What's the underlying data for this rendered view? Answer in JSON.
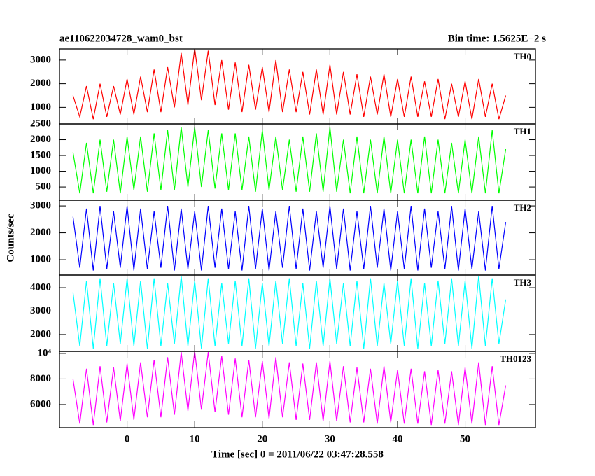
{
  "header": {
    "title": "ae110622034728_wam0_bst",
    "bin_time": "Bin time: 1.5625E−2 s"
  },
  "ylabel": "Counts/sec",
  "xlabel": "Time [sec] 0 = 2011/06/22 03:47:28.558",
  "xlim": [
    -10,
    60.4
  ],
  "xticks": [
    0,
    10,
    20,
    30,
    40,
    50
  ],
  "chart_data": [
    {
      "type": "line",
      "ylim": [
        300,
        3470
      ],
      "yticks": [
        1000,
        2000,
        3000
      ],
      "x": [
        -8,
        -7,
        -6,
        -5,
        -4,
        -3,
        -2,
        -1,
        0,
        1,
        2,
        3,
        4,
        5,
        6,
        7,
        8,
        9,
        10,
        11,
        12,
        13,
        14,
        15,
        16,
        17,
        18,
        19,
        20,
        21,
        22,
        23,
        24,
        25,
        26,
        27,
        28,
        29,
        30,
        31,
        32,
        33,
        34,
        35,
        36,
        37,
        38,
        39,
        40,
        41,
        42,
        43,
        44,
        45,
        46,
        47,
        48,
        49,
        50,
        51,
        52,
        53,
        54,
        55,
        56
      ],
      "series": [
        {
          "name": "TH0",
          "color": "#ff0000",
          "values": [
            1500,
            600,
            1900,
            500,
            2000,
            600,
            1900,
            700,
            2200,
            700,
            2300,
            800,
            2600,
            800,
            2700,
            1000,
            3300,
            1100,
            3500,
            1300,
            3400,
            1100,
            3000,
            900,
            2900,
            800,
            2800,
            900,
            2700,
            800,
            3000,
            800,
            2600,
            800,
            2500,
            700,
            2600,
            700,
            2800,
            700,
            2500,
            700,
            2400,
            600,
            2300,
            700,
            2400,
            600,
            2200,
            600,
            2300,
            600,
            2100,
            600,
            2200,
            500,
            2000,
            600,
            2100,
            500,
            2200,
            600,
            2000,
            500,
            1500
          ]
        }
      ]
    },
    {
      "type": "line",
      "ylim": [
        80,
        2500
      ],
      "yticks": [
        500,
        1000,
        1500,
        2000,
        2500
      ],
      "x": [
        -8,
        -7,
        -6,
        -5,
        -4,
        -3,
        -2,
        -1,
        0,
        1,
        2,
        3,
        4,
        5,
        6,
        7,
        8,
        9,
        10,
        11,
        12,
        13,
        14,
        15,
        16,
        17,
        18,
        19,
        20,
        21,
        22,
        23,
        24,
        25,
        26,
        27,
        28,
        29,
        30,
        31,
        32,
        33,
        34,
        35,
        36,
        37,
        38,
        39,
        40,
        41,
        42,
        43,
        44,
        45,
        46,
        47,
        48,
        49,
        50,
        51,
        52,
        53,
        54,
        55,
        56
      ],
      "series": [
        {
          "name": "TH1",
          "color": "#00ff00",
          "values": [
            1600,
            300,
            1900,
            300,
            2000,
            350,
            2000,
            300,
            2100,
            400,
            2100,
            350,
            2200,
            400,
            2300,
            400,
            2400,
            500,
            2400,
            500,
            2300,
            450,
            2200,
            400,
            2200,
            400,
            2100,
            350,
            2300,
            400,
            2100,
            400,
            2000,
            350,
            2100,
            350,
            2200,
            350,
            2400,
            350,
            2000,
            300,
            2100,
            300,
            2000,
            300,
            2100,
            300,
            2000,
            300,
            2000,
            300,
            2100,
            300,
            2000,
            300,
            1900,
            300,
            2000,
            300,
            2100,
            300,
            2300,
            300,
            1700
          ]
        }
      ]
    },
    {
      "type": "line",
      "ylim": [
        430,
        3210
      ],
      "yticks": [
        1000,
        2000,
        3000
      ],
      "x": [
        -8,
        -7,
        -6,
        -5,
        -4,
        -3,
        -2,
        -1,
        0,
        1,
        2,
        3,
        4,
        5,
        6,
        7,
        8,
        9,
        10,
        11,
        12,
        13,
        14,
        15,
        16,
        17,
        18,
        19,
        20,
        21,
        22,
        23,
        24,
        25,
        26,
        27,
        28,
        29,
        30,
        31,
        32,
        33,
        34,
        35,
        36,
        37,
        38,
        39,
        40,
        41,
        42,
        43,
        44,
        45,
        46,
        47,
        48,
        49,
        50,
        51,
        52,
        53,
        54,
        55,
        56
      ],
      "series": [
        {
          "name": "TH2",
          "color": "#0000ff",
          "values": [
            2600,
            700,
            2900,
            600,
            3000,
            650,
            2800,
            700,
            3000,
            600,
            2900,
            650,
            2800,
            700,
            3000,
            600,
            2900,
            650,
            2800,
            600,
            3000,
            700,
            2900,
            650,
            2800,
            600,
            3000,
            650,
            2900,
            600,
            2800,
            700,
            3000,
            650,
            2900,
            600,
            2800,
            700,
            3000,
            650,
            2900,
            600,
            2800,
            650,
            3000,
            700,
            2900,
            600,
            2800,
            650,
            3000,
            600,
            2900,
            700,
            2800,
            650,
            3000,
            600,
            2900,
            650,
            2800,
            600,
            3000,
            650,
            2400
          ]
        }
      ]
    },
    {
      "type": "line",
      "ylim": [
        1280,
        4540
      ],
      "yticks": [
        2000,
        3000,
        4000
      ],
      "x": [
        -8,
        -7,
        -6,
        -5,
        -4,
        -3,
        -2,
        -1,
        0,
        1,
        2,
        3,
        4,
        5,
        6,
        7,
        8,
        9,
        10,
        11,
        12,
        13,
        14,
        15,
        16,
        17,
        18,
        19,
        20,
        21,
        22,
        23,
        24,
        25,
        26,
        27,
        28,
        29,
        30,
        31,
        32,
        33,
        34,
        35,
        36,
        37,
        38,
        39,
        40,
        41,
        42,
        43,
        44,
        45,
        46,
        47,
        48,
        49,
        50,
        51,
        52,
        53,
        54,
        55,
        56
      ],
      "series": [
        {
          "name": "TH3",
          "color": "#00ffff",
          "values": [
            3800,
            1500,
            4300,
            1400,
            4400,
            1500,
            4200,
            1600,
            4400,
            1500,
            4300,
            1400,
            4400,
            1500,
            4200,
            1600,
            4500,
            1500,
            4300,
            1400,
            4400,
            1500,
            4200,
            1600,
            4300,
            1500,
            4400,
            1400,
            4200,
            1500,
            4300,
            1600,
            4400,
            1500,
            4200,
            1400,
            4300,
            1500,
            4400,
            1600,
            4200,
            1500,
            4300,
            1400,
            4400,
            1500,
            4200,
            1600,
            4300,
            1500,
            4400,
            1400,
            4200,
            1500,
            4300,
            1600,
            4400,
            1500,
            4300,
            1400,
            4500,
            1500,
            4400,
            1600,
            3500
          ]
        }
      ]
    },
    {
      "type": "line",
      "ylim": [
        4190,
        10160
      ],
      "yticks": [
        6000,
        8000,
        {
          "value": 10000,
          "label": "10⁴"
        }
      ],
      "x": [
        -8,
        -7,
        -6,
        -5,
        -4,
        -3,
        -2,
        -1,
        0,
        1,
        2,
        3,
        4,
        5,
        6,
        7,
        8,
        9,
        10,
        11,
        12,
        13,
        14,
        15,
        16,
        17,
        18,
        19,
        20,
        21,
        22,
        23,
        24,
        25,
        26,
        27,
        28,
        29,
        30,
        31,
        32,
        33,
        34,
        35,
        36,
        37,
        38,
        39,
        40,
        41,
        42,
        43,
        44,
        45,
        46,
        47,
        48,
        49,
        50,
        51,
        52,
        53,
        54,
        55,
        56
      ],
      "series": [
        {
          "name": "TH0123",
          "color": "#ff00ff",
          "values": [
            8000,
            4500,
            8800,
            4400,
            9000,
            4600,
            8900,
            4700,
            9200,
            4800,
            9300,
            5000,
            9500,
            5000,
            9700,
            5200,
            10100,
            5500,
            10200,
            5600,
            10100,
            5400,
            9800,
            5200,
            9600,
            5000,
            9500,
            5000,
            9400,
            4900,
            9700,
            5000,
            9300,
            4800,
            9200,
            4800,
            9300,
            4700,
            9400,
            4700,
            9000,
            4600,
            8900,
            4600,
            8800,
            4500,
            9000,
            4600,
            8700,
            4500,
            8800,
            4500,
            8600,
            4400,
            8700,
            4500,
            8600,
            4400,
            8900,
            4500,
            9300,
            4400,
            9000,
            4400,
            7500
          ]
        }
      ]
    }
  ]
}
